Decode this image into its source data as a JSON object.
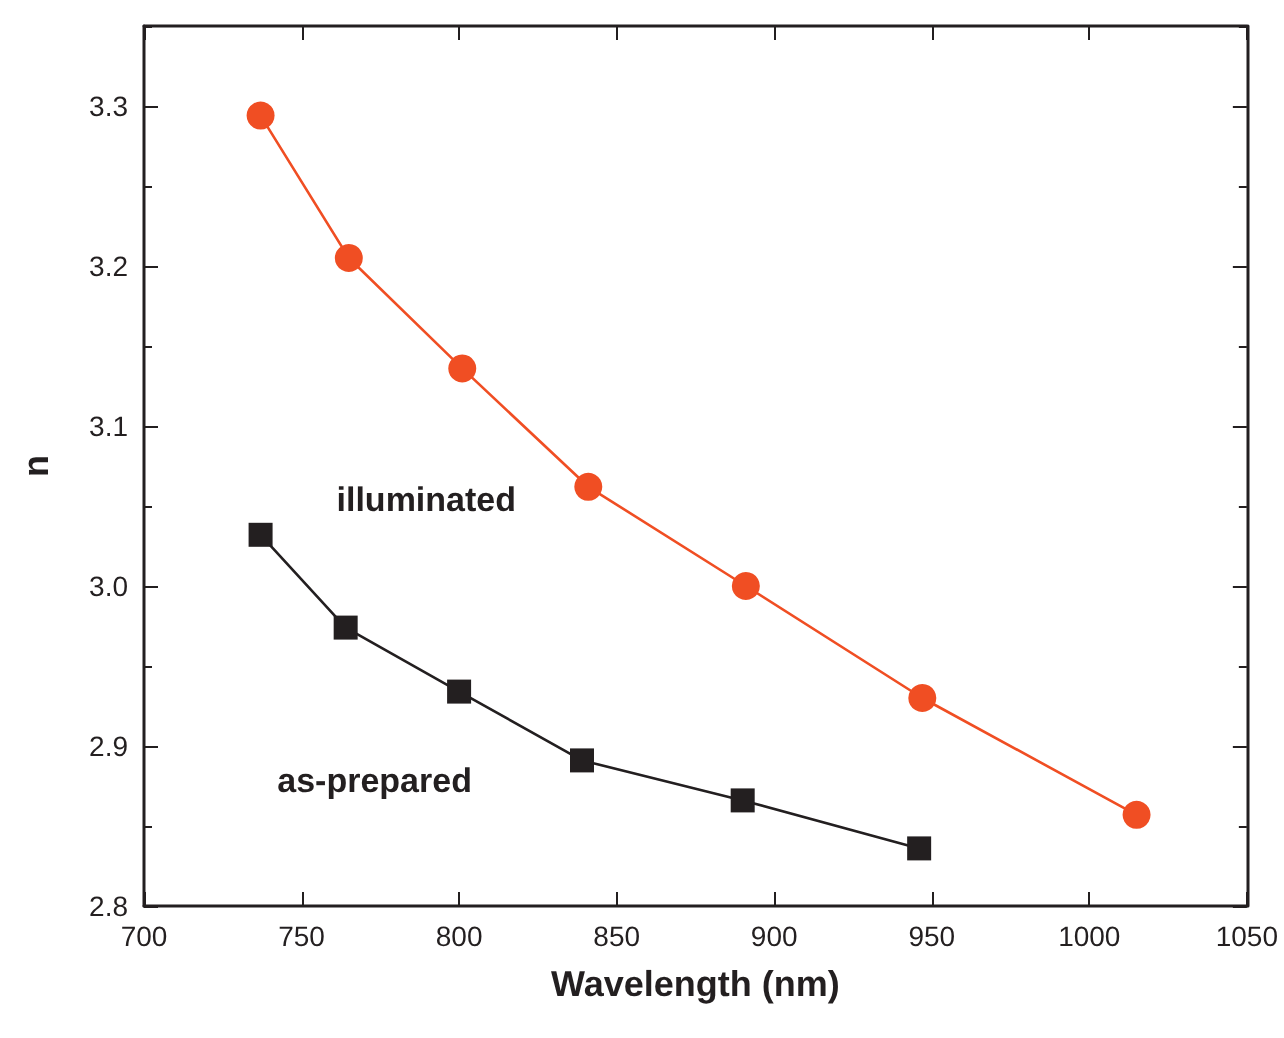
{
  "chart_data": {
    "type": "line",
    "xlabel": "Wavelength (nm)",
    "ylabel": "n",
    "xlim": [
      700,
      1050
    ],
    "xticks": [
      700,
      750,
      800,
      850,
      900,
      950,
      1000,
      1050
    ],
    "ylim": [
      2.8,
      3.35
    ],
    "yticks": [
      2.8,
      2.9,
      {
        "value": 3,
        "label": "3.0"
      },
      3.1,
      3.2,
      3.3
    ],
    "grid": false,
    "legend": false,
    "line_style": "solid",
    "series": [
      {
        "name": "illuminated",
        "color": "#f04e23",
        "marker": "circle",
        "x": [
          737,
          765,
          801,
          841,
          891,
          947,
          1015
        ],
        "values": [
          3.294,
          3.205,
          3.136,
          3.062,
          3.0,
          2.93,
          2.857
        ]
      },
      {
        "name": "as-prepared",
        "color": "#231f20",
        "marker": "square",
        "x": [
          737,
          764,
          800,
          839,
          890,
          946
        ],
        "values": [
          3.032,
          2.974,
          2.934,
          2.891,
          2.866,
          2.836
        ]
      }
    ]
  }
}
